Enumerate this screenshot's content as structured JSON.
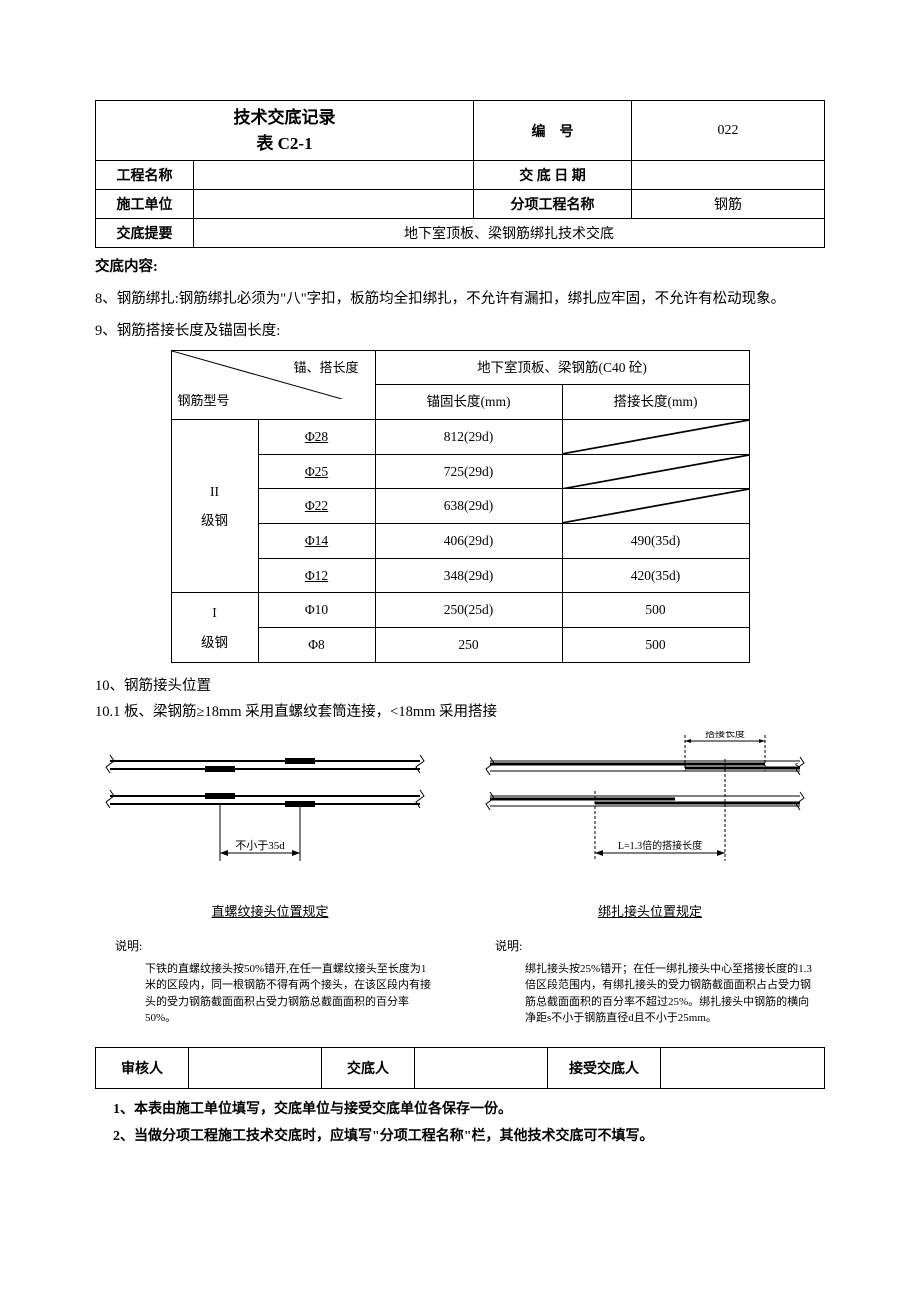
{
  "header": {
    "title_line1": "技术交底记录",
    "title_line2": "表 C2-1",
    "bianhao_label": "编　号",
    "bianhao_value": "022",
    "project_name_label": "工程名称",
    "project_name_value": "",
    "date_label": "交 底 日 期",
    "date_value": "",
    "unit_label": "施工单位",
    "unit_value": "",
    "subitem_label": "分项工程名称",
    "subitem_value": "钢筋",
    "summary_label": "交底提要",
    "summary_value": "地下室顶板、梁钢筋绑扎技术交底"
  },
  "content": {
    "heading": "交底内容:",
    "p8": "8、钢筋绑扎:钢筋绑扎必须为\"八\"字扣，板筋均全扣绑扎，不允许有漏扣，绑扎应牢固，不允许有松动现象。",
    "p9": "9、钢筋搭接长度及锚固长度:",
    "p10": "10、钢筋接头位置",
    "p10_1": "10.1 板、梁钢筋≥18mm 采用直螺纹套筒连接，<18mm 采用搭接"
  },
  "inner_table": {
    "diag_top": "锚、搭长度",
    "diag_bottom": "钢筋型号",
    "col2_header": "地下室顶板、梁钢筋(C40 砼)",
    "col2a": "锚固长度(mm)",
    "col2b": "搭接长度(mm)",
    "group1": "II\n级钢",
    "group2": "I\n级钢",
    "rows": [
      {
        "phi": "Φ28",
        "anchor": "812(29d)",
        "lap": "slash"
      },
      {
        "phi": "Φ25",
        "anchor": "725(29d)",
        "lap": "slash"
      },
      {
        "phi": "Φ22",
        "anchor": "638(29d)",
        "lap": "slash"
      },
      {
        "phi": "Φ14",
        "anchor": "406(29d)",
        "lap": "490(35d)"
      },
      {
        "phi": "Φ12",
        "anchor": "348(29d)",
        "lap": "420(35d)"
      },
      {
        "phi": "Φ10",
        "anchor": "250(25d)",
        "lap": "500"
      },
      {
        "phi": "Φ8",
        "anchor": "250",
        "lap": "500"
      }
    ]
  },
  "diagrams": {
    "left": {
      "dim_label": "不小于35d",
      "caption": "直螺纹接头位置规定",
      "explain_label": "说明:",
      "explain_text": "下铁的直螺纹接头按50%错开,在任一直螺纹接头至长度为1米的区段内，同一根钢筋不得有两个接头，在该区段内有接头的受力钢筋截面面积占受力钢筋总截面面积的百分率50%。"
    },
    "right": {
      "top_label": "搭接长度",
      "dim_label": "L=1.3倍的搭接长度",
      "caption": "绑扎接头位置规定",
      "explain_label": "说明:",
      "explain_text": "绑扎接头按25%错开；在任一绑扎接头中心至搭接长度的1.3倍区段范围内，有绑扎接头的受力钢筋截面面积占占受力钢筋总截面面积的百分率不超过25%。绑扎接头中钢筋的横向净距s不小于钢筋直径d且不小于25mm。"
    }
  },
  "signatures": {
    "reviewer": "审核人",
    "deliverer": "交底人",
    "receiver": "接受交底人"
  },
  "footnotes": {
    "f1": "1、本表由施工单位填写，交底单位与接受交底单位各保存一份。",
    "f2": "2、当做分项工程施工技术交底时，应填写\"分项工程名称\"栏，其他技术交底可不填写。"
  }
}
